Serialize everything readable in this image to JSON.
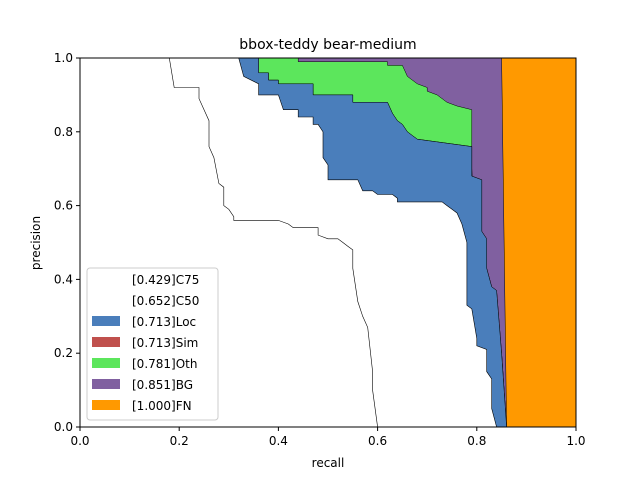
{
  "chart_data": {
    "type": "area",
    "title": "bbox-teddy bear-medium",
    "xlabel": "recall",
    "ylabel": "precision",
    "xlim": [
      0,
      1
    ],
    "ylim": [
      0,
      1
    ],
    "xticks": [
      "0.0",
      "0.2",
      "0.4",
      "0.6",
      "0.8",
      "1.0"
    ],
    "yticks": [
      "0.0",
      "0.2",
      "0.4",
      "0.6",
      "0.8",
      "1.0"
    ],
    "legend_position": "lower-left",
    "series": [
      {
        "name": "[1.000]FN",
        "color": "#ff9900",
        "curve": [
          [
            0,
            1
          ],
          [
            1.0,
            1
          ],
          [
            1.0,
            0
          ]
        ]
      },
      {
        "name": "[0.851]BG",
        "color": "#8060a0",
        "curve": [
          [
            0,
            1
          ],
          [
            0.85,
            1
          ],
          [
            0.86,
            0
          ]
        ]
      },
      {
        "name": "[0.781]Oth",
        "color": "#5ce65c",
        "curve": [
          [
            0,
            1
          ],
          [
            0.44,
            1
          ],
          [
            0.44,
            0.99
          ],
          [
            0.62,
            0.99
          ],
          [
            0.62,
            0.98
          ],
          [
            0.65,
            0.98
          ],
          [
            0.66,
            0.95
          ],
          [
            0.68,
            0.93
          ],
          [
            0.7,
            0.92
          ],
          [
            0.7,
            0.91
          ],
          [
            0.72,
            0.9
          ],
          [
            0.74,
            0.88
          ],
          [
            0.76,
            0.87
          ],
          [
            0.79,
            0.86
          ],
          [
            0.79,
            0.7
          ],
          [
            0.8,
            0.42
          ],
          [
            0.81,
            0.4
          ],
          [
            0.82,
            0.35
          ],
          [
            0.84,
            0.3
          ],
          [
            0.85,
            0.2
          ],
          [
            0.86,
            0
          ]
        ]
      },
      {
        "name": "[0.713]Sim",
        "color": "#c0504d",
        "curve": [
          [
            0,
            1
          ],
          [
            0.36,
            1
          ],
          [
            0.36,
            0.96
          ],
          [
            0.38,
            0.96
          ],
          [
            0.38,
            0.94
          ],
          [
            0.4,
            0.94
          ],
          [
            0.4,
            0.93
          ],
          [
            0.47,
            0.93
          ],
          [
            0.47,
            0.9
          ],
          [
            0.55,
            0.9
          ],
          [
            0.55,
            0.88
          ],
          [
            0.62,
            0.88
          ],
          [
            0.63,
            0.85
          ],
          [
            0.64,
            0.83
          ],
          [
            0.65,
            0.82
          ],
          [
            0.66,
            0.8
          ],
          [
            0.67,
            0.79
          ],
          [
            0.68,
            0.78
          ],
          [
            0.79,
            0.76
          ],
          [
            0.79,
            0.68
          ],
          [
            0.81,
            0.67
          ],
          [
            0.81,
            0.53
          ],
          [
            0.82,
            0.51
          ],
          [
            0.82,
            0.43
          ],
          [
            0.83,
            0.38
          ],
          [
            0.84,
            0.37
          ],
          [
            0.85,
            0.2
          ],
          [
            0.86,
            0
          ]
        ]
      },
      {
        "name": "[0.713]Loc",
        "color": "#4a7ebb",
        "curve": [
          [
            0,
            1
          ],
          [
            0.36,
            1
          ],
          [
            0.36,
            0.96
          ],
          [
            0.38,
            0.96
          ],
          [
            0.38,
            0.94
          ],
          [
            0.4,
            0.94
          ],
          [
            0.4,
            0.93
          ],
          [
            0.47,
            0.93
          ],
          [
            0.47,
            0.9
          ],
          [
            0.55,
            0.9
          ],
          [
            0.55,
            0.88
          ],
          [
            0.62,
            0.88
          ],
          [
            0.63,
            0.85
          ],
          [
            0.64,
            0.83
          ],
          [
            0.65,
            0.82
          ],
          [
            0.66,
            0.8
          ],
          [
            0.67,
            0.79
          ],
          [
            0.68,
            0.78
          ],
          [
            0.79,
            0.76
          ],
          [
            0.79,
            0.68
          ],
          [
            0.81,
            0.67
          ],
          [
            0.81,
            0.53
          ],
          [
            0.82,
            0.51
          ],
          [
            0.82,
            0.43
          ],
          [
            0.83,
            0.38
          ],
          [
            0.84,
            0.37
          ],
          [
            0.85,
            0.2
          ],
          [
            0.86,
            0
          ]
        ]
      },
      {
        "name": "[0.652]C50",
        "color": "#ffffff",
        "curve": [
          [
            0,
            1
          ],
          [
            0.32,
            1
          ],
          [
            0.33,
            0.95
          ],
          [
            0.36,
            0.93
          ],
          [
            0.36,
            0.9
          ],
          [
            0.4,
            0.9
          ],
          [
            0.41,
            0.86
          ],
          [
            0.44,
            0.86
          ],
          [
            0.44,
            0.84
          ],
          [
            0.47,
            0.84
          ],
          [
            0.47,
            0.82
          ],
          [
            0.48,
            0.82
          ],
          [
            0.49,
            0.8
          ],
          [
            0.49,
            0.73
          ],
          [
            0.5,
            0.71
          ],
          [
            0.5,
            0.67
          ],
          [
            0.56,
            0.67
          ],
          [
            0.57,
            0.64
          ],
          [
            0.59,
            0.64
          ],
          [
            0.6,
            0.63
          ],
          [
            0.63,
            0.63
          ],
          [
            0.64,
            0.62
          ],
          [
            0.64,
            0.61
          ],
          [
            0.69,
            0.61
          ],
          [
            0.73,
            0.61
          ],
          [
            0.74,
            0.6
          ],
          [
            0.75,
            0.59
          ],
          [
            0.76,
            0.58
          ],
          [
            0.77,
            0.55
          ],
          [
            0.78,
            0.5
          ],
          [
            0.78,
            0.4
          ],
          [
            0.78,
            0.33
          ],
          [
            0.79,
            0.32
          ],
          [
            0.8,
            0.24
          ],
          [
            0.8,
            0.22
          ],
          [
            0.82,
            0.21
          ],
          [
            0.82,
            0.15
          ],
          [
            0.83,
            0.13
          ],
          [
            0.83,
            0.05
          ],
          [
            0.84,
            0
          ]
        ]
      },
      {
        "name": "[0.429]C75",
        "color": "#ffffff",
        "curve": [
          [
            0,
            1
          ],
          [
            0.18,
            1
          ],
          [
            0.19,
            0.92
          ],
          [
            0.24,
            0.92
          ],
          [
            0.24,
            0.89
          ],
          [
            0.26,
            0.83
          ],
          [
            0.26,
            0.76
          ],
          [
            0.27,
            0.73
          ],
          [
            0.28,
            0.66
          ],
          [
            0.29,
            0.65
          ],
          [
            0.29,
            0.6
          ],
          [
            0.3,
            0.59
          ],
          [
            0.31,
            0.57
          ],
          [
            0.31,
            0.56
          ],
          [
            0.33,
            0.56
          ],
          [
            0.4,
            0.56
          ],
          [
            0.42,
            0.55
          ],
          [
            0.43,
            0.54
          ],
          [
            0.48,
            0.54
          ],
          [
            0.48,
            0.52
          ],
          [
            0.5,
            0.51
          ],
          [
            0.52,
            0.51
          ],
          [
            0.53,
            0.5
          ],
          [
            0.54,
            0.49
          ],
          [
            0.55,
            0.48
          ],
          [
            0.55,
            0.43
          ],
          [
            0.56,
            0.34
          ],
          [
            0.57,
            0.3
          ],
          [
            0.58,
            0.27
          ],
          [
            0.59,
            0.15
          ],
          [
            0.59,
            0.1
          ],
          [
            0.6,
            0
          ]
        ]
      }
    ]
  }
}
